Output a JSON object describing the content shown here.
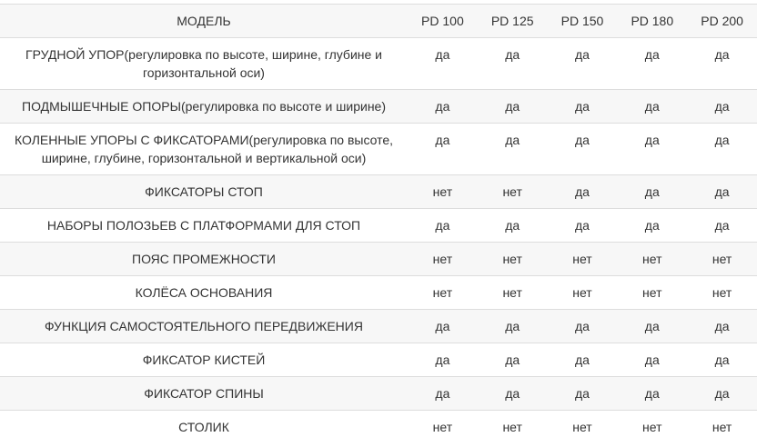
{
  "table": {
    "header": [
      "МОДЕЛЬ",
      "PD 100",
      "PD 125",
      "PD 150",
      "PD 180",
      "PD 200"
    ],
    "rows": [
      {
        "feature": "ГРУДНОЙ УПОР(регулировка по высоте, ширине, глубине и горизонтальной оси)",
        "values": [
          "да",
          "да",
          "да",
          "да",
          "да"
        ]
      },
      {
        "feature": "ПОДМЫШЕЧНЫЕ ОПОРЫ(регулировка по высоте и ширине)",
        "values": [
          "да",
          "да",
          "да",
          "да",
          "да"
        ]
      },
      {
        "feature": "КОЛЕННЫЕ УПОРЫ С ФИКСАТОРАМИ(регулировка по высоте, ширине, глубине, горизонтальной и вертикальной оси)",
        "values": [
          "да",
          "да",
          "да",
          "да",
          "да"
        ]
      },
      {
        "feature": "ФИКСАТОРЫ СТОП",
        "values": [
          "нет",
          "нет",
          "да",
          "да",
          "да"
        ]
      },
      {
        "feature": "НАБОРЫ ПОЛОЗЬЕВ С ПЛАТФОРМАМИ ДЛЯ СТОП",
        "values": [
          "да",
          "да",
          "да",
          "да",
          "да"
        ]
      },
      {
        "feature": "ПОЯС ПРОМЕЖНОСТИ",
        "values": [
          "нет",
          "нет",
          "нет",
          "нет",
          "нет"
        ]
      },
      {
        "feature": "КОЛЁСА ОСНОВАНИЯ",
        "values": [
          "нет",
          "нет",
          "нет",
          "нет",
          "нет"
        ]
      },
      {
        "feature": "ФУНКЦИЯ САМОСТОЯТЕЛЬНОГО ПЕРЕДВИЖЕНИЯ",
        "values": [
          "да",
          "да",
          "да",
          "да",
          "да"
        ]
      },
      {
        "feature": "ФИКСАТОР КИСТЕЙ",
        "values": [
          "да",
          "да",
          "да",
          "да",
          "да"
        ]
      },
      {
        "feature": "ФИКСАТОР СПИНЫ",
        "values": [
          "да",
          "да",
          "да",
          "да",
          "да"
        ]
      },
      {
        "feature": "СТОЛИК",
        "values": [
          "нет",
          "нет",
          "нет",
          "нет",
          "нет"
        ]
      }
    ]
  }
}
